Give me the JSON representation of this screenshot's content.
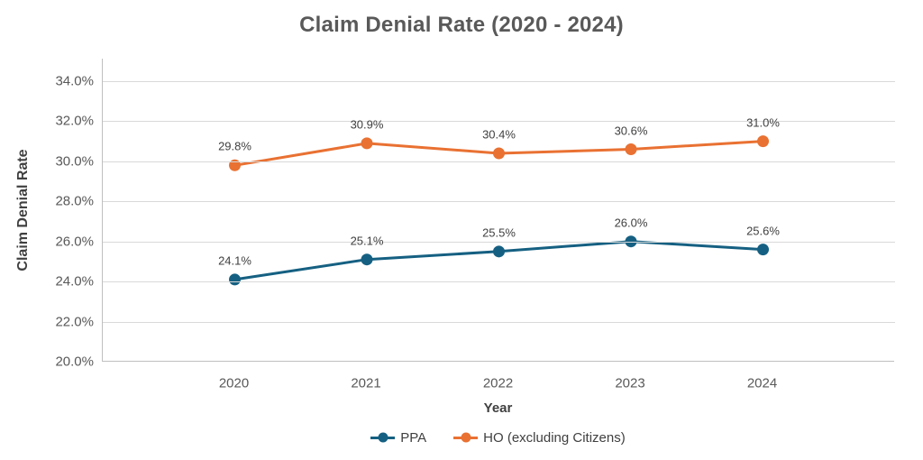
{
  "chart_data": {
    "type": "line",
    "title": "Claim Denial Rate (2020 - 2024)",
    "xlabel": "Year",
    "ylabel": "Claim Denial Rate",
    "categories": [
      "2020",
      "2021",
      "2022",
      "2023",
      "2024"
    ],
    "series": [
      {
        "name": "PPA",
        "color": "#156082",
        "values": [
          24.1,
          25.1,
          25.5,
          26.0,
          25.6
        ],
        "labels": [
          "24.1%",
          "25.1%",
          "25.5%",
          "26.0%",
          "25.6%"
        ]
      },
      {
        "name": "HO (excluding Citizens)",
        "color": "#E97132",
        "values": [
          29.8,
          30.9,
          30.4,
          30.6,
          31.0
        ],
        "labels": [
          "29.8%",
          "30.9%",
          "30.4%",
          "30.6%",
          "31.0%"
        ]
      }
    ],
    "y_axis": {
      "min": 20,
      "max": 34,
      "step": 2,
      "tick_labels": [
        "20.0%",
        "22.0%",
        "24.0%",
        "26.0%",
        "28.0%",
        "30.0%",
        "32.0%",
        "34.0%"
      ]
    },
    "grid": true,
    "legend_position": "bottom",
    "colors": {
      "gridline": "#D9D9D9",
      "axis_line": "#BFBFBF",
      "tick_text": "#595959",
      "title_text": "#595959",
      "label_text": "#404040"
    }
  }
}
